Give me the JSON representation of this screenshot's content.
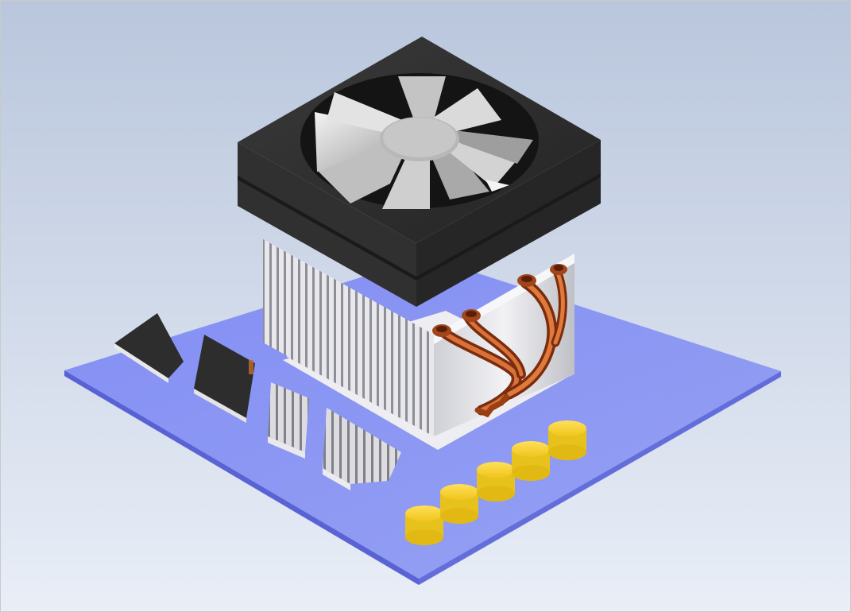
{
  "scene": {
    "subject": "cpu-cooler-on-circuit-board",
    "colors": {
      "background_top": "#b9c6dc",
      "background_bottom": "#e9eef7",
      "board": "#6f7cf2",
      "board_edge": "#3f49c8",
      "fan_housing": "#2b2b2b",
      "fan_blades": "#d9d9d9",
      "heatsink": "#e6e6ea",
      "heatpipe": "#b5541e",
      "capacitor": "#f1cf2a",
      "chip": "#2d2d2d"
    },
    "components": {
      "capacitor_count": 5,
      "heatpipe_count": 4,
      "chip_count": 2,
      "small_heatsink_count": 2
    }
  }
}
